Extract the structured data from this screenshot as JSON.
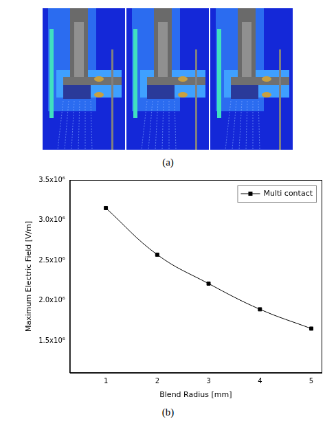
{
  "captions": [
    "(a)",
    "(b)"
  ],
  "chart_data": {
    "type": "line",
    "xlabel": "Blend Radius [mm]",
    "ylabel": "Maximum Electric Field [V/m]",
    "x": [
      1,
      2,
      3,
      4,
      5
    ],
    "series": [
      {
        "name": "Multi contact",
        "color": "#000000",
        "marker": "square",
        "line_style": "solid",
        "values": [
          3150000,
          2570000,
          2210000,
          1890000,
          1650000
        ]
      }
    ],
    "xlim": [
      0.3,
      5.2
    ],
    "ylim": [
      1100000,
      3500000
    ],
    "xticks": [
      1,
      2,
      3,
      4,
      5
    ],
    "yticks": [
      {
        "value": 1500000,
        "label": "1.5x10⁶"
      },
      {
        "value": 2000000,
        "label": "2.0x10⁶"
      },
      {
        "value": 2500000,
        "label": "2.5x10⁶"
      },
      {
        "value": 3000000,
        "label": "3.0x10⁶"
      },
      {
        "value": 3500000,
        "label": "3.5x10⁶"
      }
    ],
    "grid": false,
    "legend": "upper right"
  }
}
